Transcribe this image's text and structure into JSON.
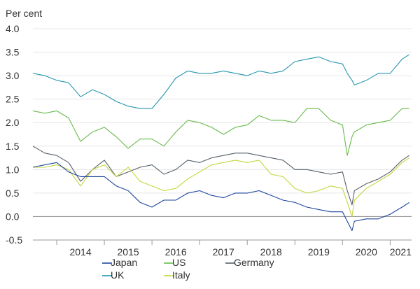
{
  "chart_data": {
    "type": "line",
    "title": "",
    "unit_label": "Per cent",
    "xlabel": "",
    "ylabel": "",
    "ylim": [
      -0.5,
      4.0
    ],
    "y_ticks": [
      "4.0",
      "3.5",
      "3.0",
      "2.5",
      "2.0",
      "1.5",
      "1.0",
      "0.5",
      "0.0",
      "-0.5"
    ],
    "y_tick_values": [
      4.0,
      3.5,
      3.0,
      2.5,
      2.0,
      1.5,
      1.0,
      0.5,
      0.0,
      -0.5
    ],
    "xlim": [
      2013.5,
      2021.45
    ],
    "x_ticks": [
      "2014",
      "2015",
      "2016",
      "2017",
      "2018",
      "2019",
      "2020",
      "2021"
    ],
    "x_tick_values": [
      2014.0,
      2015.0,
      2016.0,
      2017.0,
      2018.0,
      2019.0,
      2020.0,
      2021.0
    ],
    "grid": "horizontal",
    "legend_position": "bottom",
    "x": [
      2013.5,
      2013.75,
      2014.0,
      2014.25,
      2014.5,
      2014.75,
      2015.0,
      2015.25,
      2015.5,
      2015.75,
      2016.0,
      2016.25,
      2016.5,
      2016.75,
      2017.0,
      2017.25,
      2017.5,
      2017.75,
      2018.0,
      2018.25,
      2018.5,
      2018.75,
      2019.0,
      2019.25,
      2019.5,
      2019.75,
      2020.0,
      2020.1,
      2020.2,
      2020.25,
      2020.5,
      2020.75,
      2021.0,
      2021.25,
      2021.4
    ],
    "series": [
      {
        "name": "UK",
        "color": "#2596b0",
        "values": [
          3.05,
          3.0,
          2.9,
          2.85,
          2.55,
          2.7,
          2.6,
          2.45,
          2.35,
          2.3,
          2.3,
          2.6,
          2.95,
          3.1,
          3.05,
          3.05,
          3.1,
          3.05,
          3.0,
          3.1,
          3.05,
          3.1,
          3.3,
          3.35,
          3.4,
          3.3,
          3.25,
          3.05,
          2.9,
          2.8,
          2.9,
          3.05,
          3.05,
          3.35,
          3.45
        ]
      },
      {
        "name": "US",
        "color": "#69ba4c",
        "values": [
          2.25,
          2.2,
          2.25,
          2.1,
          1.6,
          1.8,
          1.9,
          1.7,
          1.45,
          1.65,
          1.65,
          1.5,
          1.8,
          2.05,
          2.0,
          1.9,
          1.75,
          1.9,
          1.95,
          2.15,
          2.05,
          2.05,
          2.0,
          2.3,
          2.3,
          2.05,
          1.95,
          1.3,
          1.7,
          1.8,
          1.95,
          2.0,
          2.05,
          2.3,
          2.3
        ]
      },
      {
        "name": "Germany",
        "color": "#56606a",
        "values": [
          1.5,
          1.35,
          1.3,
          1.15,
          0.75,
          1.0,
          1.2,
          0.85,
          0.95,
          1.05,
          1.1,
          0.9,
          1.0,
          1.2,
          1.15,
          1.25,
          1.3,
          1.35,
          1.35,
          1.3,
          1.25,
          1.2,
          1.0,
          1.0,
          0.95,
          0.9,
          0.95,
          0.55,
          0.25,
          0.55,
          0.7,
          0.8,
          0.95,
          1.2,
          1.3
        ]
      },
      {
        "name": "Italy",
        "color": "#c4d63c",
        "values": [
          1.05,
          1.05,
          1.1,
          1.0,
          0.65,
          1.0,
          1.1,
          0.85,
          1.05,
          0.75,
          0.65,
          0.55,
          0.6,
          0.8,
          0.95,
          1.1,
          1.15,
          1.2,
          1.15,
          1.2,
          0.9,
          0.85,
          0.6,
          0.5,
          0.55,
          0.65,
          0.6,
          0.3,
          0.0,
          0.35,
          0.6,
          0.75,
          0.9,
          1.15,
          1.25
        ]
      },
      {
        "name": "Japan",
        "color": "#1e46a0",
        "values": [
          1.05,
          1.1,
          1.15,
          0.95,
          0.85,
          0.85,
          0.85,
          0.65,
          0.55,
          0.3,
          0.2,
          0.35,
          0.35,
          0.5,
          0.55,
          0.45,
          0.4,
          0.5,
          0.5,
          0.55,
          0.45,
          0.35,
          0.3,
          0.2,
          0.15,
          0.1,
          0.1,
          -0.1,
          -0.3,
          -0.1,
          -0.05,
          -0.05,
          0.05,
          0.2,
          0.3
        ]
      }
    ]
  }
}
